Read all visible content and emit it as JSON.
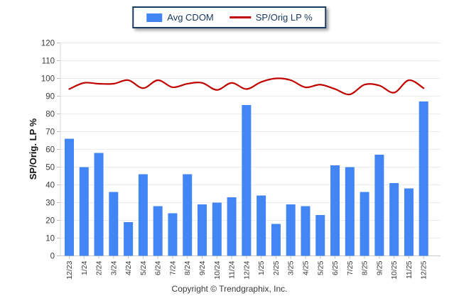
{
  "legend": {
    "items": [
      {
        "label": "Avg CDOM",
        "swatch": "bar-swatch",
        "color": "#4285f4"
      },
      {
        "label": "SP/Orig LP %",
        "swatch": "line-swatch",
        "color": "#c00000"
      }
    ]
  },
  "footer": {
    "text": "Copyright © Trendgraphix, Inc."
  },
  "chart_data": {
    "type": "combo",
    "categories": [
      "12/23",
      "1/24",
      "2/24",
      "3/24",
      "4/24",
      "5/24",
      "6/24",
      "7/24",
      "8/24",
      "9/24",
      "10/24",
      "11/24",
      "12/24",
      "1/25",
      "2/25",
      "3/25",
      "4/25",
      "5/25",
      "6/25",
      "7/25",
      "8/25",
      "9/25",
      "10/25",
      "11/25",
      "12/25"
    ],
    "series": [
      {
        "name": "Avg CDOM",
        "type": "bar",
        "color": "#4285f4",
        "values": [
          66,
          50,
          58,
          36,
          19,
          46,
          28,
          24,
          46,
          29,
          30,
          33,
          85,
          34,
          18,
          29,
          28,
          23,
          51,
          50,
          36,
          57,
          41,
          38,
          87
        ]
      },
      {
        "name": "SP/Orig LP %",
        "type": "line",
        "color": "#c00000",
        "values": [
          94,
          97.5,
          97,
          97,
          99,
          94.5,
          99,
          95,
          97,
          97.5,
          93.5,
          97.5,
          94,
          98,
          100,
          99,
          95,
          96.5,
          94,
          91,
          96.5,
          96,
          92,
          99,
          94.5
        ]
      }
    ],
    "xlabel": "",
    "ylabel": "SP/Orig. LP %",
    "ylim": [
      0,
      120
    ],
    "ytick_step": 10,
    "grid": true,
    "legend_position": "top-center",
    "x_tick_rotation": -90
  }
}
